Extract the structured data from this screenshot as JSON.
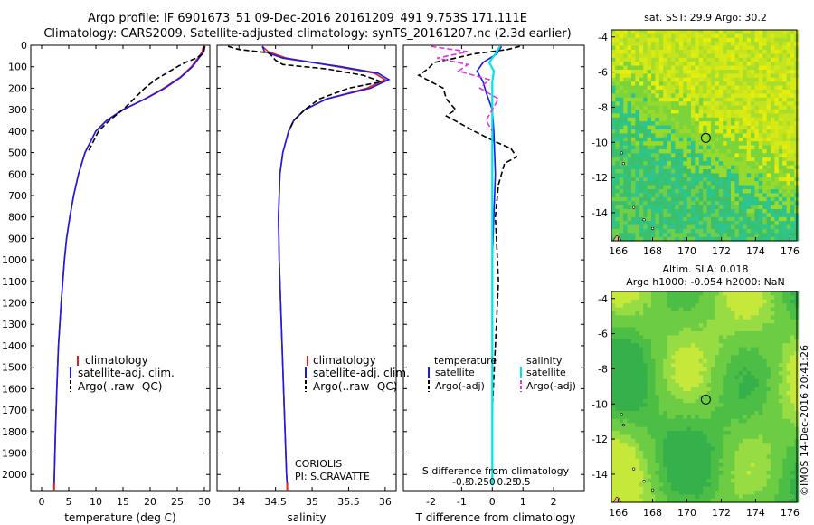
{
  "header": {
    "title_line1": "Argo profile: IF 6901673_51 09-Dec-2016 20161209_491 9.753S 171.111E",
    "title_line2": "Climatology: CARS2009. Satellite-adjusted climatology: synTS_20161207.nc (2.3d earlier)"
  },
  "colors": {
    "climatology": "#e02020",
    "satellite": "#1a1ae6",
    "argo": "#000000",
    "sal_satellite": "#00e5e5",
    "sal_argo": "#e632e6"
  },
  "depth_axis": {
    "ylim": [
      0,
      2075
    ],
    "ticks": [
      0,
      100,
      200,
      300,
      400,
      500,
      600,
      700,
      800,
      900,
      1000,
      1100,
      1200,
      1300,
      1400,
      1500,
      1600,
      1700,
      1800,
      1900,
      2000
    ]
  },
  "chart_data": [
    {
      "type": "line",
      "id": "temperature",
      "xlabel": "temperature (deg C)",
      "xlim": [
        -2,
        31
      ],
      "xticks": [
        0,
        5,
        10,
        15,
        20,
        25,
        30
      ],
      "legend": [
        "climatology",
        "satellite-adj. clim.",
        "Argo(..raw -QC)"
      ],
      "series": [
        {
          "name": "climatology",
          "depth": [
            5,
            30,
            60,
            100,
            150,
            200,
            250,
            300,
            350,
            400,
            500,
            600,
            700,
            800,
            900,
            1000,
            1200,
            1400,
            1600,
            1800,
            2000,
            2050
          ],
          "values": [
            29.8,
            29.6,
            28.8,
            27.6,
            25.5,
            22.5,
            19.0,
            15.0,
            12.0,
            10.0,
            8.0,
            6.8,
            5.9,
            5.2,
            4.6,
            4.2,
            3.6,
            3.1,
            2.8,
            2.55,
            2.35,
            2.3
          ]
        },
        {
          "name": "satellite-adj. clim.",
          "depth": [
            5,
            30,
            60,
            100,
            150,
            200,
            250,
            300,
            350,
            400,
            500,
            600,
            700,
            800,
            900,
            1000,
            1200,
            1400,
            1600,
            1800,
            2000,
            2050
          ],
          "values": [
            30.1,
            29.9,
            29.0,
            27.8,
            25.6,
            22.7,
            19.1,
            15.0,
            12.0,
            10.0,
            8.0,
            6.8,
            5.9,
            5.2,
            4.6,
            4.2,
            3.6,
            3.1,
            2.8,
            2.55,
            2.35,
            2.3
          ]
        },
        {
          "name": "Argo(..raw -QC)",
          "depth": [
            5,
            20,
            40,
            60,
            80,
            100,
            130,
            160,
            200,
            250,
            300,
            350,
            400,
            450,
            500
          ],
          "values": [
            30.0,
            29.9,
            29.7,
            28.5,
            26.5,
            25.0,
            23.0,
            21.0,
            19.0,
            17.0,
            15.0,
            12.5,
            10.5,
            9.5,
            8.5
          ]
        }
      ]
    },
    {
      "type": "line",
      "id": "salinity",
      "xlabel": "salinity",
      "xlim": [
        33.7,
        36.15
      ],
      "xticks": [
        34,
        34.5,
        35,
        35.5,
        36
      ],
      "legend": [
        "climatology",
        "satellite-adj. clim.",
        "Argo(..raw -QC)"
      ],
      "annotation": [
        "CORIOLIS",
        "PI: S.CRAVATTE"
      ],
      "series": [
        {
          "name": "climatology",
          "depth": [
            5,
            30,
            60,
            100,
            130,
            160,
            200,
            250,
            300,
            350,
            400,
            500,
            600,
            800,
            1000,
            1500,
            2000,
            2050
          ],
          "values": [
            34.32,
            34.4,
            34.65,
            35.35,
            35.85,
            36.0,
            35.75,
            35.2,
            34.9,
            34.75,
            34.68,
            34.6,
            34.56,
            34.54,
            34.55,
            34.6,
            34.65,
            34.66
          ]
        },
        {
          "name": "satellite-adj. clim.",
          "depth": [
            5,
            30,
            60,
            100,
            130,
            160,
            200,
            250,
            300,
            350,
            400,
            500,
            600,
            800,
            1000,
            1500,
            2000,
            2050
          ],
          "values": [
            34.32,
            34.35,
            34.6,
            35.4,
            35.9,
            36.05,
            35.8,
            35.2,
            34.9,
            34.75,
            34.68,
            34.6,
            34.56,
            34.54,
            34.55,
            34.6,
            34.65,
            34.66
          ]
        },
        {
          "name": "Argo(..raw -QC)",
          "depth": [
            5,
            20,
            35,
            50,
            70,
            90,
            110,
            140,
            170,
            200,
            250,
            300,
            350,
            400
          ],
          "values": [
            33.85,
            34.0,
            34.4,
            34.45,
            34.5,
            34.6,
            35.2,
            35.7,
            35.95,
            35.5,
            35.1,
            34.9,
            34.75,
            34.68
          ]
        }
      ]
    },
    {
      "type": "line",
      "id": "difference",
      "xlabel": "T difference from climatology",
      "xlabel_top": "S difference from climatology",
      "xlim": [
        -2.9,
        3.0
      ],
      "xticks": [
        -2,
        -1,
        0,
        1,
        2
      ],
      "xticks_top": [
        "-0.5",
        "-0.25",
        "0",
        "0.25",
        "0.5"
      ],
      "legend_temperature": [
        "temperature",
        "satellite",
        "Argo(-adj)"
      ],
      "legend_salinity": [
        "salinity",
        "satellite",
        "Argo(-adj)"
      ],
      "series": [
        {
          "name": "temperature satellite",
          "depth": [
            5,
            40,
            80,
            120,
            170,
            220,
            300,
            400,
            600,
            1000,
            2050
          ],
          "values": [
            0.3,
            0.15,
            -0.3,
            -0.5,
            -0.3,
            -0.2,
            0.0,
            0.05,
            0.1,
            0.0,
            0.0
          ]
        },
        {
          "name": "temperature Argo(-adj)",
          "depth": [
            5,
            20,
            40,
            60,
            80,
            110,
            140,
            170,
            200,
            250,
            300,
            330,
            360,
            400,
            450,
            480,
            520,
            550,
            600,
            650,
            800,
            1100,
            1400,
            1700,
            2050
          ],
          "values": [
            0.9,
            0.5,
            -0.6,
            -1.2,
            -1.9,
            -2.1,
            -2.4,
            -2.0,
            -1.6,
            -1.5,
            -1.2,
            -1.5,
            -1.1,
            -0.6,
            0.1,
            0.6,
            0.8,
            0.4,
            0.3,
            0.2,
            0.1,
            0.2,
            0.1,
            0.0,
            0.0
          ]
        },
        {
          "name": "salinity satellite",
          "depth": [
            5,
            40,
            80,
            120,
            170,
            220,
            300,
            400,
            600,
            1000,
            2050
          ],
          "values": [
            0.25,
            0.1,
            -0.1,
            0.05,
            0.0,
            0.0,
            0.0,
            0.0,
            0.0,
            0.0,
            0.0
          ]
        },
        {
          "name": "salinity Argo(-adj)",
          "depth": [
            5,
            30,
            60,
            90,
            120,
            160,
            200,
            250,
            300,
            350,
            400
          ],
          "values": [
            -2.0,
            -0.8,
            -1.8,
            -0.8,
            -1.1,
            -0.1,
            -0.4,
            0.2,
            0.0,
            -0.2,
            0.0
          ]
        }
      ]
    }
  ],
  "maps": [
    {
      "id": "sst-map",
      "title": "sat. SST: 29.9 Argo: 30.2",
      "xticks": [
        166,
        168,
        170,
        172,
        174,
        176
      ],
      "yticks": [
        -4,
        -6,
        -8,
        -10,
        -12,
        -14
      ],
      "lon_range": [
        165.6,
        176.4
      ],
      "lat_range": [
        -15.6,
        -3.6
      ],
      "marker": {
        "lon": 171.1,
        "lat": -9.75
      }
    },
    {
      "id": "sla-map",
      "title_line1": "Altim. SLA: 0.018",
      "title_line2": "Argo h1000: -0.054 h2000: NaN",
      "xticks": [
        166,
        168,
        170,
        172,
        174,
        176
      ],
      "yticks": [
        -4,
        -6,
        -8,
        -10,
        -12,
        -14
      ],
      "lon_range": [
        165.6,
        176.4
      ],
      "lat_range": [
        -15.6,
        -3.6
      ],
      "marker": {
        "lon": 171.1,
        "lat": -9.75
      }
    }
  ],
  "footer": {
    "credit": "©IMOS 14-Dec-2016 20:41:26"
  }
}
